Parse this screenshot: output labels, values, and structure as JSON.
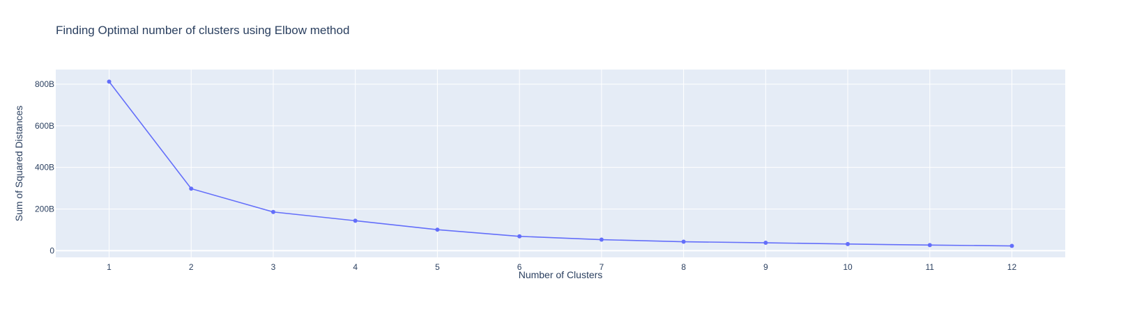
{
  "chart_data": {
    "type": "line",
    "title": "Finding Optimal number of clusters using Elbow method",
    "xlabel": "Number of Clusters",
    "ylabel": "Sum of Squared Distances",
    "x": [
      1,
      2,
      3,
      4,
      5,
      6,
      7,
      8,
      9,
      10,
      11,
      12
    ],
    "x_tick_labels": [
      "1",
      "2",
      "3",
      "4",
      "5",
      "6",
      "7",
      "8",
      "9",
      "10",
      "11",
      "12"
    ],
    "y": [
      812000000000,
      298000000000,
      186000000000,
      144000000000,
      101000000000,
      69000000000,
      53000000000,
      43000000000,
      38000000000,
      32000000000,
      27000000000,
      23000000000
    ],
    "y_ticks": [
      0,
      200000000000,
      400000000000,
      600000000000,
      800000000000
    ],
    "y_tick_labels": [
      "0",
      "200B",
      "400B",
      "600B",
      "800B"
    ],
    "xlim": [
      0.35,
      12.65
    ],
    "ylim": [
      -32000000000,
      870000000000
    ],
    "mode": "lines+markers",
    "grid": true,
    "colors": {
      "line": "#636efa",
      "plot_background": "#e5ecf6",
      "grid": "#ffffff",
      "text": "#2a3f5f"
    }
  }
}
